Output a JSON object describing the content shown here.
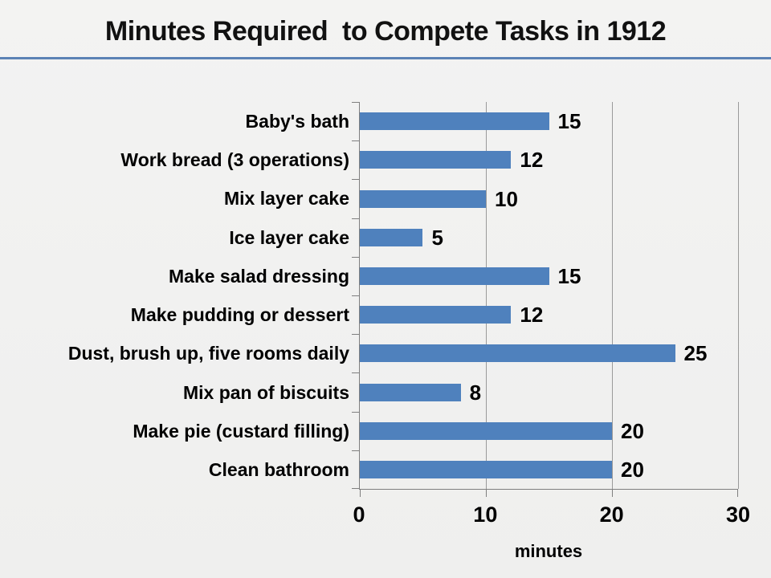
{
  "slide": {
    "title": "Minutes Required  to Compete Tasks in 1912",
    "divider_color": "#5b82b5",
    "background_color": "#f0f0ef"
  },
  "chart_data": {
    "type": "bar",
    "orientation": "horizontal",
    "categories": [
      "Baby's bath",
      "Work bread (3 operations)",
      "Mix layer cake",
      "Ice layer cake",
      "Make salad dressing",
      "Make pudding or dessert",
      "Dust, brush up, five rooms daily",
      "Mix pan of biscuits",
      "Make pie (custard filling)",
      "Clean bathroom"
    ],
    "values": [
      15,
      12,
      10,
      5,
      15,
      12,
      25,
      8,
      20,
      20
    ],
    "title": "Minutes Required  to Compete Tasks in 1912",
    "xlabel": "minutes",
    "ylabel": "",
    "xlim": [
      0,
      30
    ],
    "xticks": [
      0,
      10,
      20,
      30
    ],
    "grid": true,
    "legend": false,
    "bar_color": "#4f81bd",
    "gridline_color": "#9a9a9a",
    "axis_color": "#7f7f7f",
    "label_color": "#000000"
  }
}
